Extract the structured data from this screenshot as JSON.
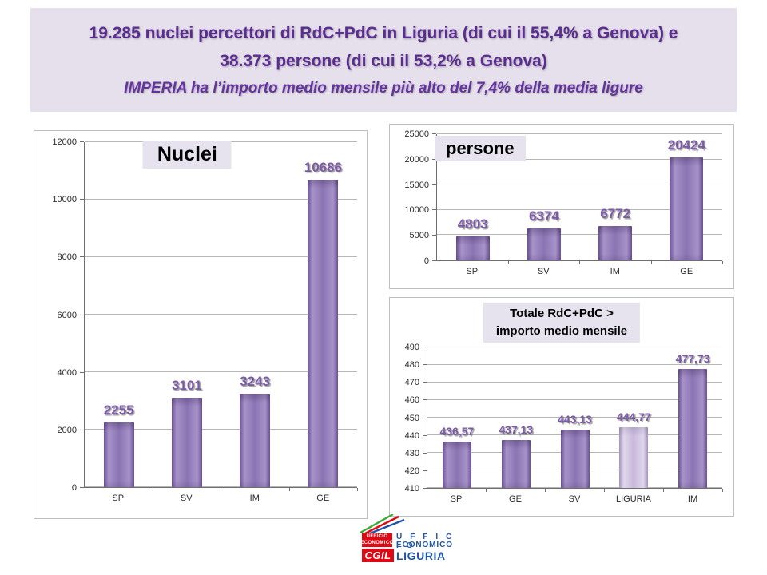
{
  "title": {
    "line1": "19.285 nuclei percettori di RdC+PdC in Liguria (di cui il 55,4% a Genova) e",
    "line2": "38.373 persone (di cui il 53,2% a Genova)",
    "line3": "IMPERIA ha l’importo medio mensile più alto del 7,4% della media ligure"
  },
  "colors": {
    "title_text": "#5b2d90",
    "title_bg": "#e6e0ec",
    "bar_purple": "#8a74b3",
    "bar_light_purple": "#c8b9dc",
    "data_label": "#7b5ba5",
    "gridline": "#b6b6b6",
    "logo_red": "#e30613",
    "logo_blue": "#2156a5",
    "logo_green": "#3aaa35"
  },
  "chart_data": [
    {
      "type": "bar",
      "title": "Nuclei",
      "categories": [
        "SP",
        "SV",
        "IM",
        "GE"
      ],
      "values": [
        2255,
        3101,
        3243,
        10686
      ],
      "labels": [
        "2255",
        "3101",
        "3243",
        "10686"
      ],
      "ylim": [
        0,
        12000
      ],
      "yticks": [
        0,
        2000,
        4000,
        6000,
        8000,
        10000,
        12000
      ],
      "grid": true,
      "legend": "none"
    },
    {
      "type": "bar",
      "title": "persone",
      "categories": [
        "SP",
        "SV",
        "IM",
        "GE"
      ],
      "values": [
        4803,
        6374,
        6772,
        20424
      ],
      "labels": [
        "4803",
        "6374",
        "6772",
        "20424"
      ],
      "ylim": [
        0,
        25000
      ],
      "yticks": [
        0,
        5000,
        10000,
        15000,
        20000,
        25000
      ],
      "grid": true,
      "legend": "none"
    },
    {
      "type": "bar",
      "title": "Totale RdC+PdC > importo medio mensile",
      "title_line1": "Totale RdC+PdC >",
      "title_line2": "importo medio mensile",
      "categories": [
        "SP",
        "GE",
        "SV",
        "LIGURIA",
        "IM"
      ],
      "values": [
        436.57,
        437.13,
        443.13,
        444.77,
        477.73
      ],
      "labels": [
        "436,57",
        "437,13",
        "443,13",
        "444,77",
        "477,73"
      ],
      "light_bar_index": 3,
      "light_bar_category": "LIGURIA",
      "ylim": [
        410,
        490
      ],
      "yticks": [
        410,
        420,
        430,
        440,
        450,
        460,
        470,
        480,
        490
      ],
      "grid": true,
      "legend": "none"
    }
  ],
  "logo": {
    "small_box_line1": "UFFICIO",
    "small_box_line2": "ECONOMICO",
    "ufficio_spaced": "U F F I C I O",
    "economico": "ECONOMICO",
    "cgil": "CGIL",
    "liguria": "LIGURIA"
  }
}
